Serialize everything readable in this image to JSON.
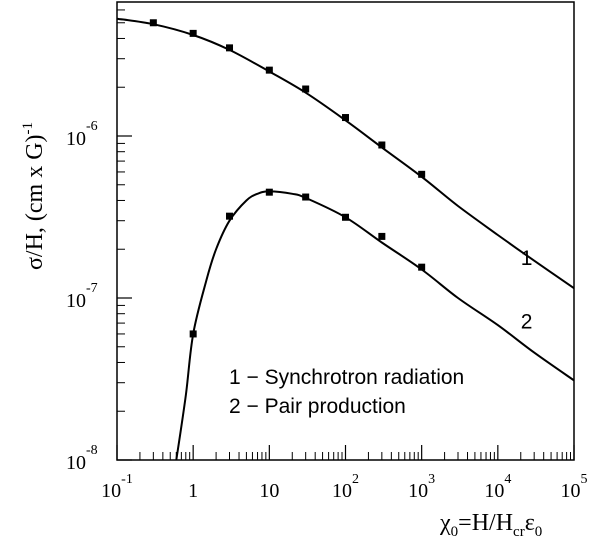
{
  "chart_data": {
    "type": "line",
    "xscale": "log",
    "yscale": "log",
    "xlim": [
      0.1,
      100000
    ],
    "ylim": [
      1e-08,
      7e-06
    ],
    "xlabel": {
      "base": "χ",
      "base_sub": "0",
      "mid": "=H/H",
      "mid_sub": "cr",
      "end": "ε",
      "end_sub": "0"
    },
    "ylabel": {
      "text": "σ/H, (cm x G)",
      "sup": "-1"
    },
    "x_ticks": [
      {
        "value": 0.1,
        "base": "10",
        "exp": "-1"
      },
      {
        "value": 1,
        "text": "1"
      },
      {
        "value": 10,
        "text": "10"
      },
      {
        "value": 100,
        "base": "10",
        "exp": "2"
      },
      {
        "value": 1000,
        "base": "10",
        "exp": "3"
      },
      {
        "value": 10000,
        "base": "10",
        "exp": "4"
      },
      {
        "value": 100000,
        "base": "10",
        "exp": "5"
      }
    ],
    "y_ticks": [
      {
        "value": 1e-08,
        "base": "10",
        "exp": "-8"
      },
      {
        "value": 1e-07,
        "base": "10",
        "exp": "-7"
      },
      {
        "value": 1e-06,
        "base": "10",
        "exp": "-6"
      }
    ],
    "grid": false,
    "series": [
      {
        "name": "Synchrotron radiation",
        "label": "1",
        "label_at": [
          20000,
          1.6e-07
        ],
        "curve": [
          [
            0.1,
            5.3e-06
          ],
          [
            0.3,
            4.9e-06
          ],
          [
            1,
            4.2e-06
          ],
          [
            3,
            3.4e-06
          ],
          [
            10,
            2.5e-06
          ],
          [
            30,
            1.85e-06
          ],
          [
            100,
            1.25e-06
          ],
          [
            300,
            8.5e-07
          ],
          [
            1000,
            5.6e-07
          ],
          [
            3000,
            3.7e-07
          ],
          [
            10000,
            2.45e-07
          ],
          [
            30000,
            1.7e-07
          ],
          [
            100000,
            1.15e-07
          ]
        ],
        "points": [
          [
            0.3,
            5e-06
          ],
          [
            1,
            4.3e-06
          ],
          [
            3,
            3.5e-06
          ],
          [
            10,
            2.55e-06
          ],
          [
            30,
            1.95e-06
          ],
          [
            100,
            1.3e-06
          ],
          [
            300,
            8.8e-07
          ],
          [
            1000,
            5.8e-07
          ]
        ]
      },
      {
        "name": "Pair production",
        "label": "2",
        "label_at": [
          20000,
          6.5e-08
        ],
        "curve": [
          [
            0.6,
            1e-08
          ],
          [
            0.8,
            2.5e-08
          ],
          [
            1,
            6e-08
          ],
          [
            1.5,
            1.3e-07
          ],
          [
            2,
            2e-07
          ],
          [
            3,
            3e-07
          ],
          [
            5,
            4e-07
          ],
          [
            7,
            4.4e-07
          ],
          [
            10,
            4.55e-07
          ],
          [
            20,
            4.4e-07
          ],
          [
            30,
            4.15e-07
          ],
          [
            100,
            3.15e-07
          ],
          [
            300,
            2.2e-07
          ],
          [
            1000,
            1.5e-07
          ],
          [
            3000,
            1e-07
          ],
          [
            10000,
            6.8e-08
          ],
          [
            30000,
            4.6e-08
          ],
          [
            100000,
            3.1e-08
          ]
        ],
        "points": [
          [
            1,
            6e-08
          ],
          [
            3,
            3.2e-07
          ],
          [
            10,
            4.5e-07
          ],
          [
            30,
            4.2e-07
          ],
          [
            100,
            3.15e-07
          ],
          [
            300,
            2.4e-07
          ],
          [
            1000,
            1.55e-07
          ]
        ]
      }
    ],
    "legend": {
      "placement": "inside-bottom-center",
      "entries": [
        "1 − Synchrotron radiation",
        "2 − Pair production"
      ]
    }
  }
}
